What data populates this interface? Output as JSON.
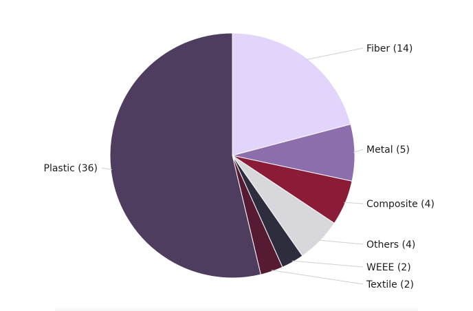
{
  "chart_data": {
    "type": "pie",
    "slices": [
      {
        "label": "Fiber (14)",
        "name": "Fiber",
        "value": 14,
        "color": "#e3d4fc"
      },
      {
        "label": "Metal (5)",
        "name": "Metal",
        "value": 5,
        "color": "#8b6eab"
      },
      {
        "label": "Composite (4)",
        "name": "Composite",
        "value": 4,
        "color": "#8b1c38"
      },
      {
        "label": "Others (4)",
        "name": "Others",
        "value": 4,
        "color": "#d8d8dc"
      },
      {
        "label": "WEEE (2)",
        "name": "WEEE",
        "value": 2,
        "color": "#2e2d3d"
      },
      {
        "label": "Textile (2)",
        "name": "Textile",
        "value": 2,
        "color": "#571a33"
      },
      {
        "label": "Plastic (36)",
        "name": "Plastic",
        "value": 36,
        "color": "#4e3d5e"
      }
    ],
    "start_angle_deg": 0,
    "direction": "clockwise",
    "legend": "none"
  }
}
